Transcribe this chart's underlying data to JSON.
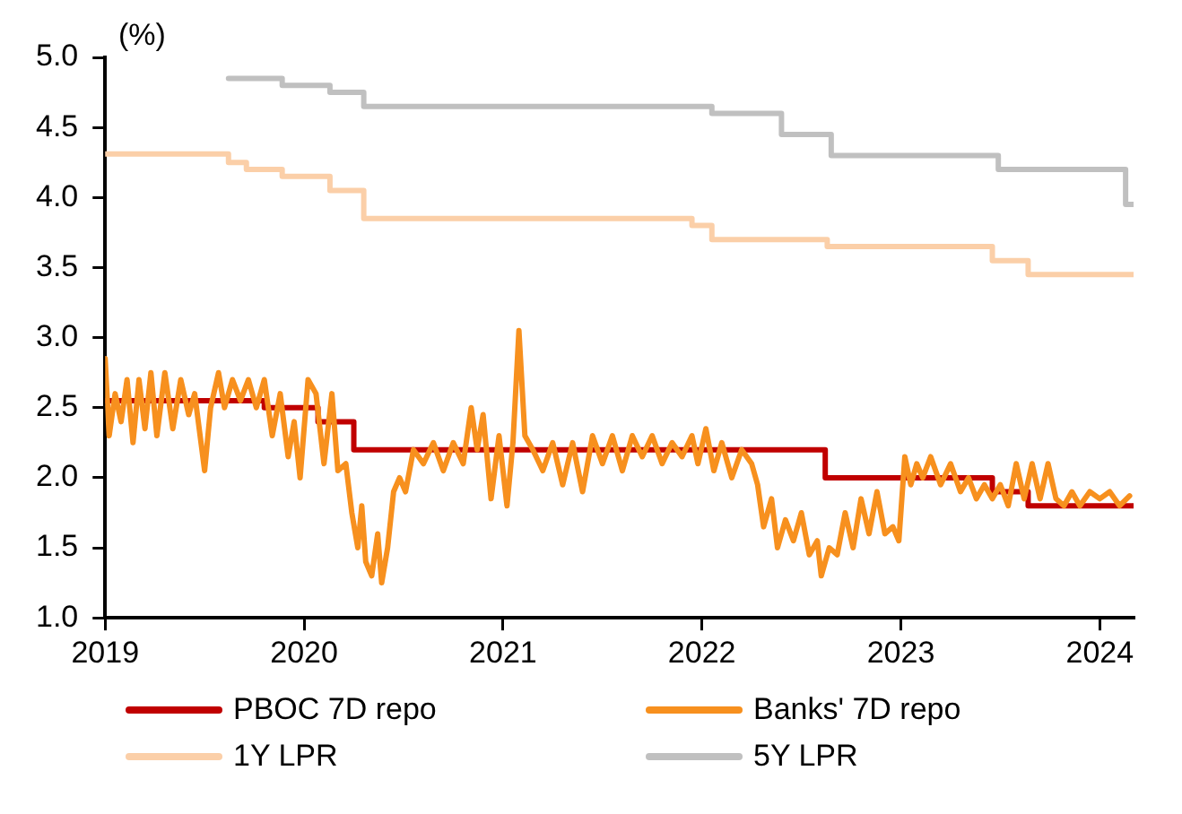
{
  "chart_data": {
    "type": "line",
    "ylabel": "(%)",
    "xlim": [
      2019,
      2024.17
    ],
    "xticks": [
      2019,
      2020,
      2021,
      2022,
      2023,
      2024
    ],
    "ylim": [
      1.0,
      5.0
    ],
    "yticks": [
      {
        "value": 1,
        "label": "1.0"
      },
      {
        "value": 1.5,
        "label": "1.5"
      },
      {
        "value": 2,
        "label": "2.0"
      },
      {
        "value": 2.5,
        "label": "2.5"
      },
      {
        "value": 3,
        "label": "3.0"
      },
      {
        "value": 3.5,
        "label": "3.5"
      },
      {
        "value": 4,
        "label": "4.0"
      },
      {
        "value": 4.5,
        "label": "4.5"
      },
      {
        "value": 5,
        "label": "5.0"
      }
    ],
    "grid": false,
    "legend": "bottom",
    "marker": "none",
    "line_style": "solid",
    "series": [
      {
        "name": "PBOC 7D repo",
        "type": "step",
        "color": "#c00000",
        "x": [
          2019,
          2019.8,
          2020.07,
          2020.25,
          2022.62,
          2023.46,
          2023.64,
          2024.17
        ],
        "values": [
          2.55,
          2.5,
          2.4,
          2.2,
          2.0,
          1.9,
          1.8,
          1.8
        ]
      },
      {
        "name": "Banks' 7D repo",
        "type": "line",
        "color": "#f7901e",
        "x": [
          2019.0,
          2019.02,
          2019.05,
          2019.08,
          2019.11,
          2019.14,
          2019.17,
          2019.2,
          2019.23,
          2019.26,
          2019.3,
          2019.34,
          2019.38,
          2019.42,
          2019.45,
          2019.5,
          2019.53,
          2019.57,
          2019.6,
          2019.64,
          2019.68,
          2019.72,
          2019.76,
          2019.8,
          2019.84,
          2019.88,
          2019.92,
          2019.95,
          2019.98,
          2020.02,
          2020.06,
          2020.1,
          2020.14,
          2020.17,
          2020.21,
          2020.24,
          2020.27,
          2020.29,
          2020.31,
          2020.34,
          2020.37,
          2020.39,
          2020.42,
          2020.45,
          2020.48,
          2020.51,
          2020.55,
          2020.6,
          2020.65,
          2020.7,
          2020.75,
          2020.8,
          2020.84,
          2020.87,
          2020.9,
          2020.94,
          2020.98,
          2021.02,
          2021.05,
          2021.08,
          2021.11,
          2021.15,
          2021.2,
          2021.25,
          2021.3,
          2021.35,
          2021.4,
          2021.45,
          2021.5,
          2021.55,
          2021.6,
          2021.65,
          2021.7,
          2021.75,
          2021.8,
          2021.85,
          2021.9,
          2021.95,
          2021.98,
          2022.02,
          2022.06,
          2022.1,
          2022.15,
          2022.2,
          2022.25,
          2022.28,
          2022.31,
          2022.35,
          2022.38,
          2022.42,
          2022.46,
          2022.5,
          2022.54,
          2022.58,
          2022.6,
          2022.64,
          2022.68,
          2022.72,
          2022.76,
          2022.8,
          2022.84,
          2022.88,
          2022.92,
          2022.96,
          2022.99,
          2023.02,
          2023.05,
          2023.08,
          2023.11,
          2023.15,
          2023.2,
          2023.25,
          2023.3,
          2023.34,
          2023.38,
          2023.42,
          2023.46,
          2023.5,
          2023.54,
          2023.58,
          2023.62,
          2023.66,
          2023.7,
          2023.74,
          2023.78,
          2023.82,
          2023.86,
          2023.9,
          2023.95,
          2024.0,
          2024.05,
          2024.1,
          2024.15
        ],
        "values": [
          2.85,
          2.3,
          2.6,
          2.4,
          2.7,
          2.25,
          2.7,
          2.35,
          2.75,
          2.3,
          2.75,
          2.35,
          2.7,
          2.45,
          2.6,
          2.05,
          2.5,
          2.75,
          2.5,
          2.7,
          2.55,
          2.7,
          2.5,
          2.7,
          2.3,
          2.6,
          2.15,
          2.4,
          2.0,
          2.7,
          2.6,
          2.1,
          2.6,
          2.05,
          2.1,
          1.75,
          1.5,
          1.8,
          1.4,
          1.3,
          1.6,
          1.25,
          1.5,
          1.9,
          2.0,
          1.9,
          2.2,
          2.1,
          2.25,
          2.05,
          2.25,
          2.1,
          2.5,
          2.2,
          2.45,
          1.85,
          2.3,
          1.8,
          2.25,
          3.05,
          2.3,
          2.2,
          2.05,
          2.25,
          1.95,
          2.25,
          1.9,
          2.3,
          2.1,
          2.3,
          2.05,
          2.3,
          2.15,
          2.3,
          2.1,
          2.25,
          2.15,
          2.3,
          2.1,
          2.35,
          2.05,
          2.25,
          2.0,
          2.2,
          2.1,
          1.95,
          1.65,
          1.85,
          1.5,
          1.7,
          1.55,
          1.75,
          1.45,
          1.55,
          1.3,
          1.5,
          1.45,
          1.75,
          1.5,
          1.85,
          1.6,
          1.9,
          1.6,
          1.65,
          1.55,
          2.15,
          1.95,
          2.1,
          2.0,
          2.15,
          1.95,
          2.1,
          1.9,
          2.0,
          1.85,
          1.95,
          1.85,
          1.95,
          1.8,
          2.1,
          1.85,
          2.1,
          1.85,
          2.1,
          1.85,
          1.8,
          1.9,
          1.8,
          1.9,
          1.85,
          1.9,
          1.8,
          1.87
        ]
      },
      {
        "name": "1Y LPR",
        "type": "step",
        "color": "#fbcfa8",
        "x": [
          2019,
          2019.62,
          2019.71,
          2019.89,
          2020.13,
          2020.3,
          2021.95,
          2022.05,
          2022.63,
          2023.46,
          2023.64,
          2024.17
        ],
        "values": [
          4.31,
          4.25,
          4.2,
          4.15,
          4.05,
          3.85,
          3.8,
          3.7,
          3.65,
          3.55,
          3.45,
          3.45
        ]
      },
      {
        "name": "5Y LPR",
        "type": "step",
        "color": "#c0c0c0",
        "x": [
          2019.62,
          2019.89,
          2020.13,
          2020.3,
          2022.05,
          2022.4,
          2022.65,
          2023.49,
          2024.13,
          2024.17
        ],
        "values": [
          4.85,
          4.8,
          4.75,
          4.65,
          4.6,
          4.45,
          4.3,
          4.2,
          3.95,
          3.95
        ]
      }
    ]
  }
}
